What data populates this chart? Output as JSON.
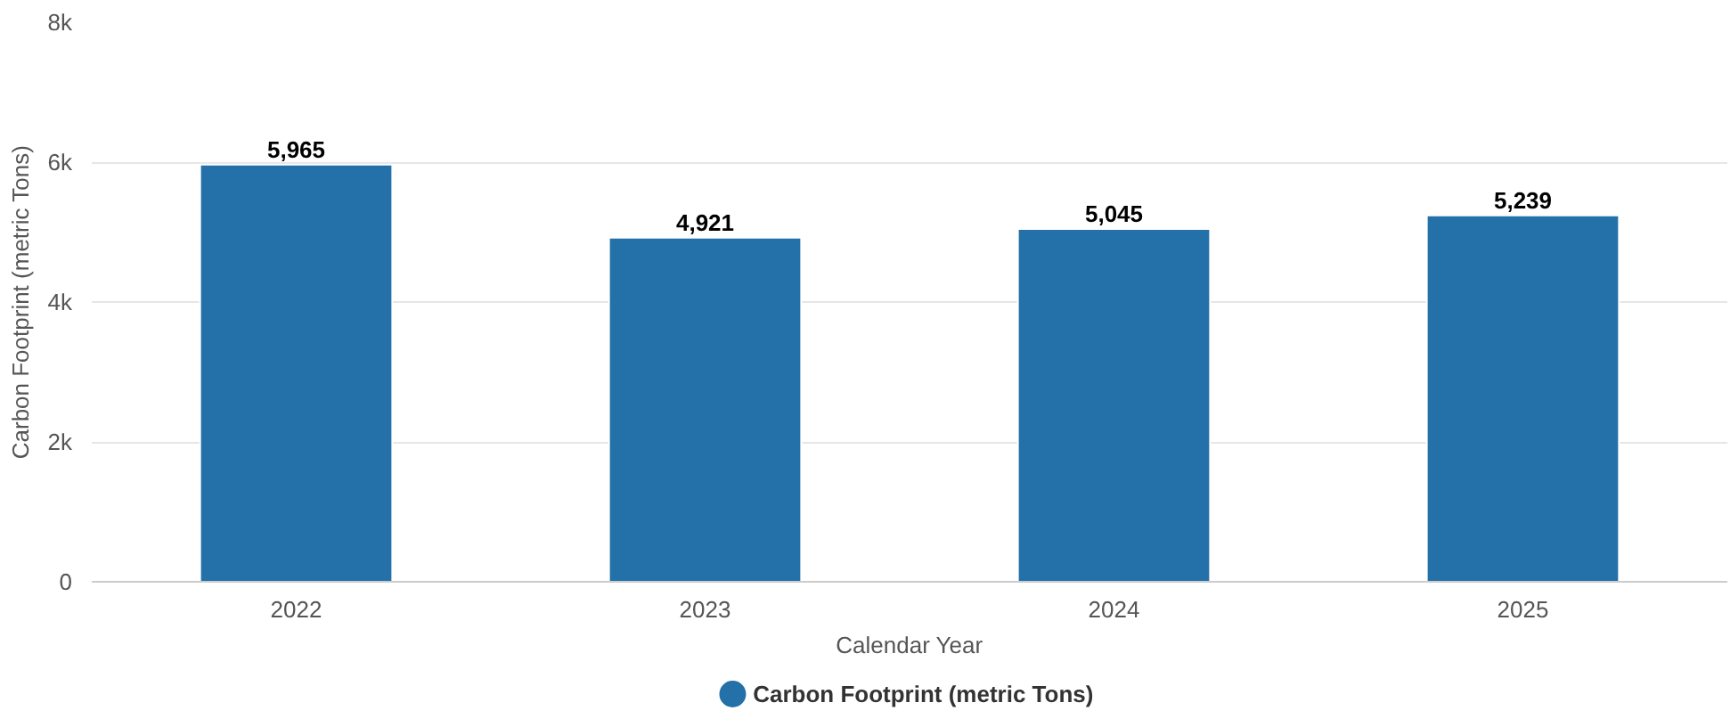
{
  "chart_data": {
    "type": "bar",
    "xlabel": "Calendar Year",
    "ylabel": "Carbon Footprint (metric Tons)",
    "categories": [
      "2022",
      "2023",
      "2024",
      "2025"
    ],
    "series": [
      {
        "name": "Carbon Footprint (metric Tons)",
        "color": "#2470a8",
        "values": [
          5965,
          4921,
          5045,
          5239
        ],
        "value_labels": [
          "5,965",
          "4,921",
          "5,045",
          "5,239"
        ]
      }
    ],
    "ylim": [
      0,
      8000
    ],
    "yticks": [
      0,
      {
        "value": 2000,
        "label": "2k"
      },
      {
        "value": 4000,
        "label": "4k"
      },
      {
        "value": 6000,
        "label": "6k"
      },
      {
        "value": 8000,
        "label": "8k"
      }
    ],
    "grid": "y",
    "legend": "bottom"
  }
}
